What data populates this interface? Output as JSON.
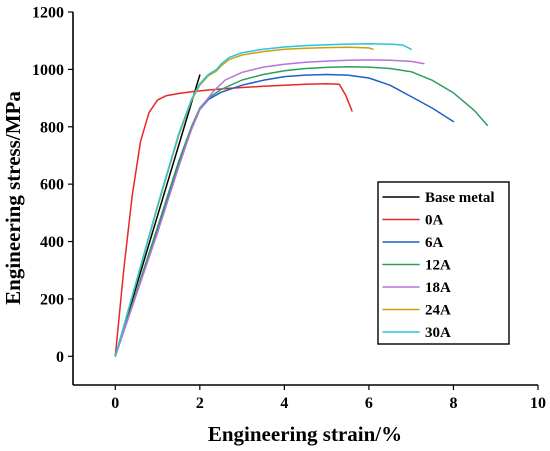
{
  "chart_data": {
    "type": "line",
    "title": "",
    "xlabel": "Engineering strain/%",
    "ylabel": "Engineering stress/MPa",
    "xlim": [
      -1,
      10
    ],
    "ylim": [
      -100,
      1200
    ],
    "xticks": [
      0,
      2,
      4,
      6,
      8,
      10
    ],
    "yticks": [
      0,
      200,
      400,
      600,
      800,
      1000,
      1200
    ],
    "xtick_labels": [
      "0",
      "2",
      "4",
      "6",
      "8",
      "10"
    ],
    "ytick_labels": [
      "0",
      "200",
      "400",
      "600",
      "800",
      "1000",
      "1200"
    ],
    "grid": false,
    "legend_position": "lower-right",
    "series": [
      {
        "name": "Base metal",
        "color": "#000000",
        "x": [
          0,
          2.0
        ],
        "y": [
          0,
          980
        ]
      },
      {
        "name": "0A",
        "color": "#e8262a",
        "x": [
          0,
          0.2,
          0.4,
          0.6,
          0.8,
          1.0,
          1.2,
          1.5,
          1.8,
          2.2,
          2.6,
          3.0,
          3.5,
          4.0,
          4.5,
          5.0,
          5.3,
          5.45,
          5.6
        ],
        "y": [
          0,
          300,
          560,
          750,
          850,
          893,
          908,
          916,
          922,
          928,
          933,
          937,
          941,
          945,
          948,
          950,
          948,
          910,
          855
        ]
      },
      {
        "name": "6A",
        "color": "#1f5fc8",
        "x": [
          0,
          0.5,
          1.0,
          1.5,
          1.8,
          2.0,
          2.2,
          2.5,
          3.0,
          3.5,
          4.0,
          4.5,
          5.0,
          5.5,
          6.0,
          6.5,
          7.0,
          7.5,
          8.0
        ],
        "y": [
          0,
          220,
          440,
          670,
          790,
          860,
          895,
          920,
          945,
          962,
          975,
          980,
          982,
          980,
          970,
          945,
          905,
          865,
          818
        ]
      },
      {
        "name": "12A",
        "color": "#2e9e60",
        "x": [
          0,
          0.5,
          1.0,
          1.5,
          1.8,
          2.0,
          2.2,
          2.5,
          3.0,
          3.5,
          4.0,
          4.5,
          5.0,
          5.5,
          6.0,
          6.5,
          7.0,
          7.5,
          8.0,
          8.5,
          8.8
        ],
        "y": [
          0,
          225,
          450,
          680,
          800,
          865,
          900,
          930,
          963,
          982,
          995,
          1003,
          1007,
          1009,
          1008,
          1003,
          992,
          962,
          918,
          856,
          805
        ]
      },
      {
        "name": "18A",
        "color": "#b873d8",
        "x": [
          0,
          0.5,
          1.0,
          1.5,
          1.8,
          2.0,
          2.3,
          2.6,
          3.0,
          3.5,
          4.0,
          4.5,
          5.0,
          5.5,
          6.0,
          6.5,
          7.0,
          7.3
        ],
        "y": [
          0,
          215,
          430,
          660,
          790,
          860,
          920,
          963,
          990,
          1008,
          1018,
          1025,
          1029,
          1032,
          1033,
          1032,
          1028,
          1020
        ]
      },
      {
        "name": "24A",
        "color": "#c9a10c",
        "x": [
          0,
          0.5,
          1.0,
          1.5,
          1.8,
          2.0,
          2.2,
          2.4,
          2.5,
          2.7,
          3.0,
          3.5,
          4.0,
          4.5,
          5.0,
          5.5,
          6.0,
          6.1
        ],
        "y": [
          0,
          260,
          520,
          770,
          890,
          945,
          978,
          995,
          1012,
          1035,
          1050,
          1062,
          1070,
          1074,
          1076,
          1077,
          1075,
          1070
        ]
      },
      {
        "name": "30A",
        "color": "#29c4d8",
        "x": [
          0,
          0.5,
          1.0,
          1.5,
          1.8,
          2.0,
          2.2,
          2.4,
          2.5,
          2.7,
          3.0,
          3.5,
          4.0,
          4.5,
          5.0,
          5.5,
          6.0,
          6.5,
          6.8,
          7.0
        ],
        "y": [
          0,
          262,
          525,
          775,
          895,
          950,
          982,
          1000,
          1018,
          1042,
          1058,
          1070,
          1078,
          1083,
          1086,
          1088,
          1089,
          1088,
          1085,
          1070
        ]
      }
    ]
  }
}
